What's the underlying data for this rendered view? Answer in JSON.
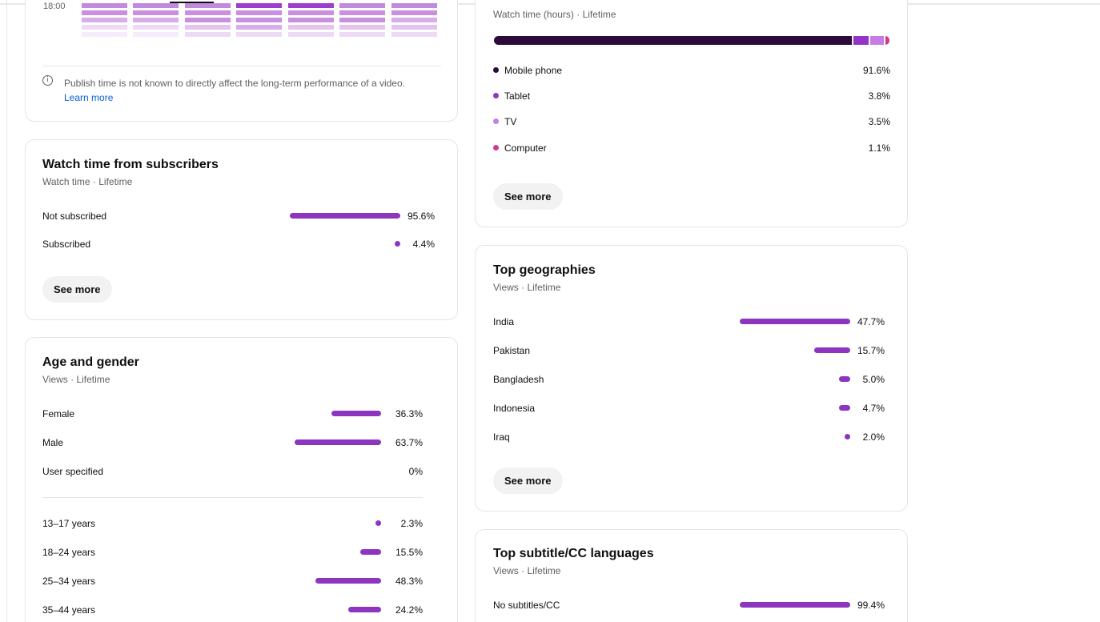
{
  "colors": {
    "bar": "#8e35c0",
    "mobile": "#2c0a3c",
    "tablet": "#9333c7",
    "tv": "#c77be6",
    "computer": "#cf3b8a",
    "link": "#065fd4"
  },
  "publish_time": {
    "time_label": "18:00",
    "heatmap_rows": [
      [
        "#c389de",
        "#c389de",
        "#c389de",
        "#9c3fcc",
        "#9c3fcc",
        "#c389de",
        "#c389de"
      ],
      [
        "#c98fe0",
        "#c98fe0",
        "#c98fe0",
        "#c98fe0",
        "#c98fe0",
        "#c98fe0",
        "#c98fe0"
      ],
      [
        "#d7aee9",
        "#d7aee9",
        "#c98fe0",
        "#c98fe0",
        "#c98fe0",
        "#c98fe0",
        "#d7aee9"
      ],
      [
        "#eddaf5",
        "#eddaf5",
        "#e2c4ef",
        "#d7aee9",
        "#e2c4ef",
        "#e2c4ef",
        "#e2c4ef"
      ],
      [
        "#f6ecfa",
        "#f6ecfa",
        "#eddaf5",
        "#eddaf5",
        "#eddaf5",
        "#eddaf5",
        "#eddaf5"
      ]
    ],
    "info_text": "Publish time is not known to directly affect the long-term performance of a video.",
    "info_link": "Learn more"
  },
  "subscribers": {
    "title": "Watch time from subscribers",
    "subtitle": "Watch time · Lifetime",
    "rows": [
      {
        "label": "Not subscribed",
        "value": "95.6%",
        "percent": 95.6
      },
      {
        "label": "Subscribed",
        "value": "4.4%",
        "percent": 4.4
      }
    ],
    "see_more": "See more"
  },
  "age_gender": {
    "title": "Age and gender",
    "subtitle": "Views · Lifetime",
    "gender_rows": [
      {
        "label": "Female",
        "value": "36.3%",
        "percent": 36.3
      },
      {
        "label": "Male",
        "value": "63.7%",
        "percent": 63.7
      },
      {
        "label": "User specified",
        "value": "0%",
        "percent": 0
      }
    ],
    "age_rows": [
      {
        "label": "13–17 years",
        "value": "2.3%",
        "percent": 2.3
      },
      {
        "label": "18–24 years",
        "value": "15.5%",
        "percent": 15.5
      },
      {
        "label": "25–34 years",
        "value": "48.3%",
        "percent": 48.3
      },
      {
        "label": "35–44 years",
        "value": "24.2%",
        "percent": 24.2
      }
    ]
  },
  "device_type": {
    "subtitle": "Watch time (hours) · Lifetime",
    "items": [
      {
        "label": "Mobile phone",
        "value": "91.6%",
        "percent": 91.6
      },
      {
        "label": "Tablet",
        "value": "3.8%",
        "percent": 3.8
      },
      {
        "label": "TV",
        "value": "3.5%",
        "percent": 3.5
      },
      {
        "label": "Computer",
        "value": "1.1%",
        "percent": 1.1
      }
    ],
    "see_more": "See more"
  },
  "geographies": {
    "title": "Top geographies",
    "subtitle": "Views · Lifetime",
    "rows": [
      {
        "label": "India",
        "value": "47.7%",
        "percent": 47.7
      },
      {
        "label": "Pakistan",
        "value": "15.7%",
        "percent": 15.7
      },
      {
        "label": "Bangladesh",
        "value": "5.0%",
        "percent": 5.0
      },
      {
        "label": "Indonesia",
        "value": "4.7%",
        "percent": 4.7
      },
      {
        "label": "Iraq",
        "value": "2.0%",
        "percent": 2.0
      }
    ],
    "see_more": "See more"
  },
  "subtitles": {
    "title": "Top subtitle/CC languages",
    "subtitle": "Views · Lifetime",
    "rows": [
      {
        "label": "No subtitles/CC",
        "value": "99.4%",
        "percent": 99.4
      }
    ]
  }
}
